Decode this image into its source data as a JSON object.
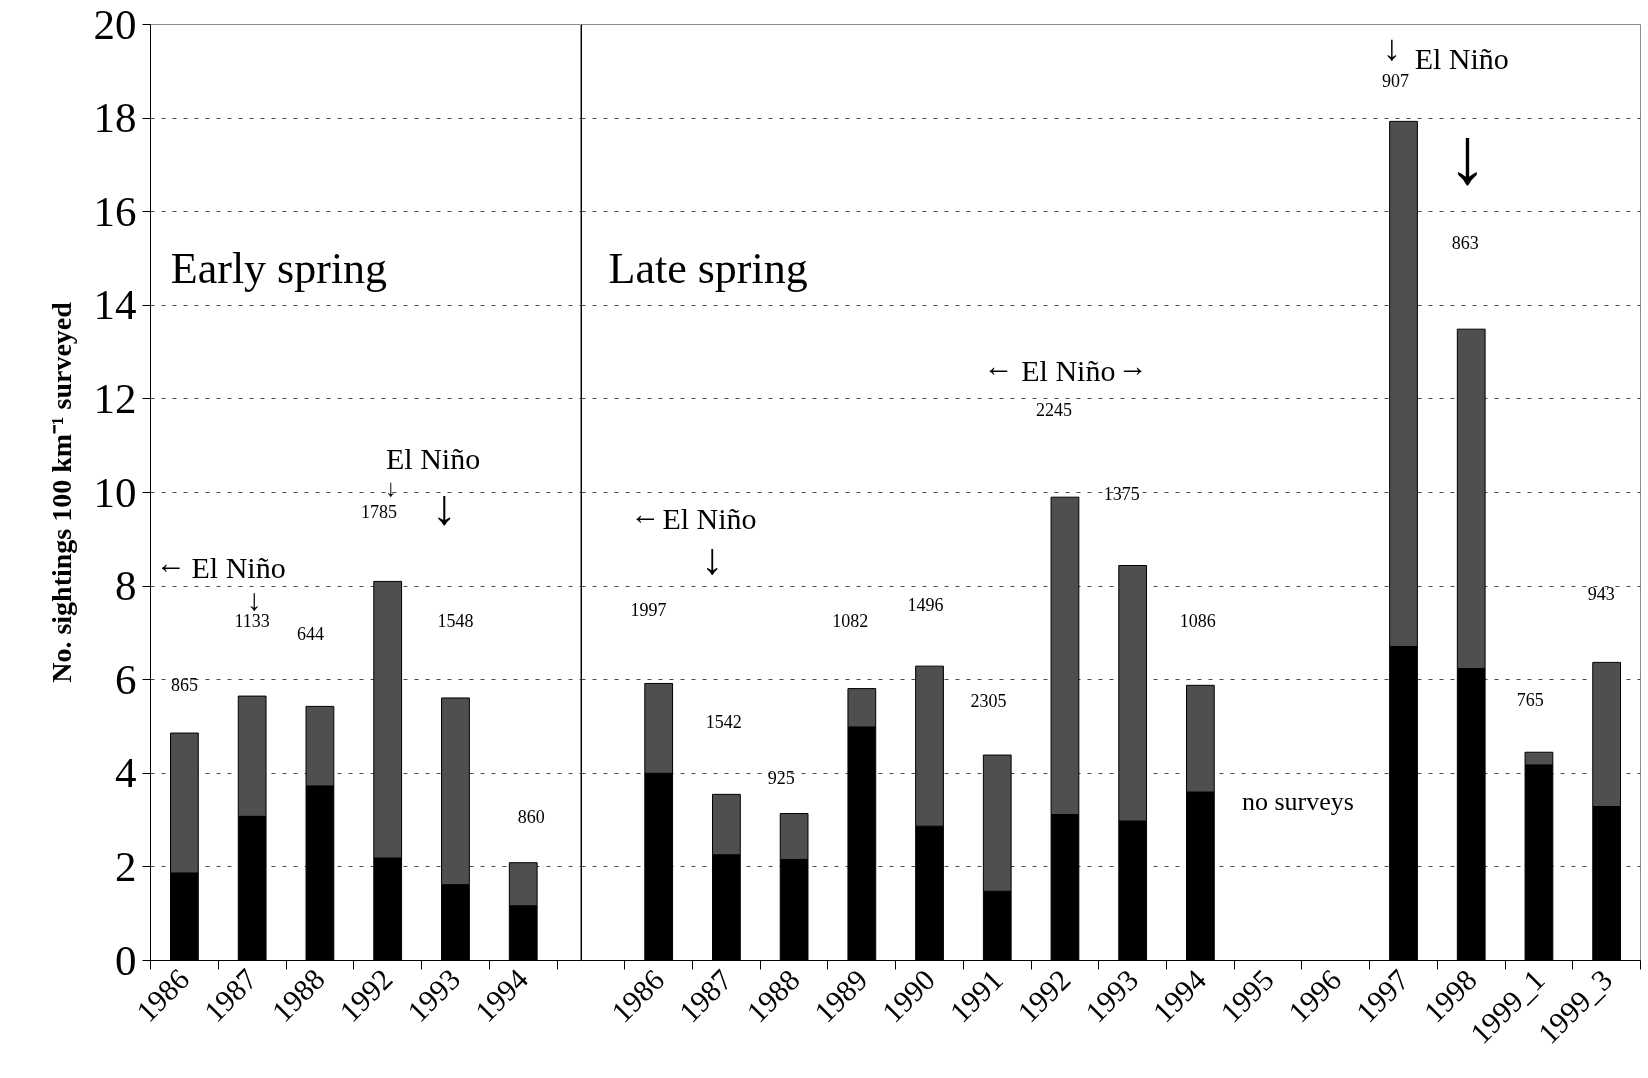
{
  "chart_data": [
    {
      "type": "bar",
      "title": "Early spring",
      "ylabel": "No. sightings 100 km⁻¹ surveyed",
      "categories": [
        "1986",
        "1987",
        "1988",
        "1992",
        "1993",
        "1994"
      ],
      "stacked": true,
      "series": [
        {
          "color": "#000000",
          "values": [
            1.87,
            3.08,
            3.73,
            2.19,
            1.62,
            1.17
          ]
        },
        {
          "color": "#4f4f4f",
          "values": [
            2.99,
            2.57,
            1.7,
            5.91,
            3.99,
            0.92
          ]
        }
      ],
      "ylim": [
        0,
        20
      ],
      "yticks": [
        0,
        2,
        4,
        6,
        8,
        10,
        12,
        14,
        16,
        18,
        20
      ],
      "grid": "y",
      "annotations": [
        "865",
        "1133",
        "644",
        "1785",
        "1548",
        "860",
        "←",
        "El Niño",
        "↓",
        "El Niño",
        "↓",
        "↓"
      ]
    },
    {
      "type": "bar",
      "title": "Late spring",
      "categories": [
        "1986",
        "1987",
        "1988",
        "1989",
        "1990",
        "1991",
        "1992",
        "1993",
        "1994",
        "1995",
        "1996",
        "1997",
        "1998",
        "1999_1",
        "1999_3"
      ],
      "stacked": true,
      "series": [
        {
          "color": "#000000",
          "values": [
            4.0,
            2.26,
            2.16,
            4.99,
            2.87,
            1.48,
            3.12,
            2.98,
            3.6,
            null,
            null,
            6.71,
            6.24,
            4.18,
            3.29
          ]
        },
        {
          "color": "#4f4f4f",
          "values": [
            1.92,
            1.29,
            0.98,
            0.82,
            3.42,
            2.91,
            6.78,
            5.46,
            2.28,
            null,
            null,
            11.22,
            7.25,
            0.27,
            3.08
          ]
        }
      ],
      "ylim": [
        0,
        20
      ],
      "yticks": [
        0,
        2,
        4,
        6,
        8,
        10,
        12,
        14,
        16,
        18,
        20
      ],
      "grid": "y",
      "tick_labels": "x",
      "annotations": [
        "1997",
        "1542",
        "925",
        "1082",
        "1496",
        "2305",
        "2245",
        "1375",
        "1086",
        "907",
        "863",
        "765",
        "943",
        "no surveys",
        "←",
        "El Niño",
        "↓",
        "←",
        "El Niño",
        "→",
        "↓",
        "El Niño",
        "↓"
      ]
    }
  ]
}
